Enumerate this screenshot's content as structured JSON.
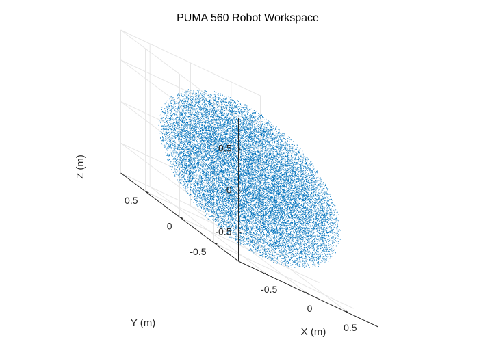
{
  "chart_data": {
    "type": "scatter",
    "title": "PUMA 560 Robot Workspace",
    "xlabel": "X (m)",
    "ylabel": "Y (m)",
    "zlabel": "Z (m)",
    "xlim": [
      -0.86,
      0.86
    ],
    "ylim": [
      -0.86,
      0.86
    ],
    "zlim": [
      -0.86,
      0.86
    ],
    "xticks": [
      -0.5,
      0,
      0.5
    ],
    "yticks": [
      -0.5,
      0,
      0.5
    ],
    "zticks": [
      -0.5,
      0,
      0.5
    ],
    "xtick_labels": [
      "-0.5",
      "0",
      "0.5"
    ],
    "ytick_labels": [
      "-0.5",
      "0",
      "0.5"
    ],
    "ztick_labels": [
      "-0.5",
      "0",
      "0.5"
    ],
    "grid": true,
    "marker_color": "#0072BD",
    "workspace_shape": "sphere",
    "workspace_radius": 0.86,
    "center": [
      0,
      0,
      0
    ]
  }
}
